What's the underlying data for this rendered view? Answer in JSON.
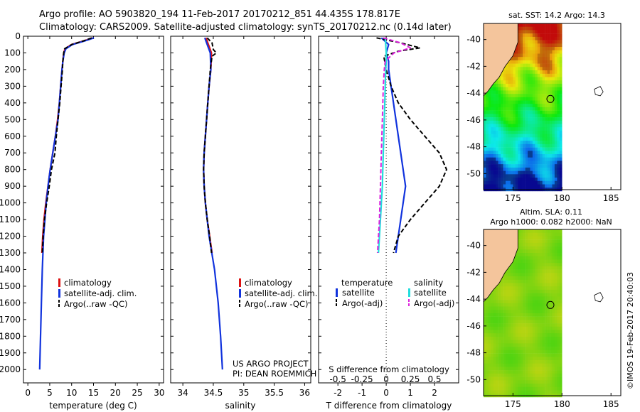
{
  "header": {
    "line1": "Argo profile: AO 5903820_194 11-Feb-2017 20170212_851 44.435S 178.817E",
    "line2": "Climatology: CARS2009. Satellite-adjusted climatology: synTS_20170212.nc (0.14d later)"
  },
  "colors": {
    "climatology": "#dd1111",
    "satellite_clim": "#1133dd",
    "argo": "#000000",
    "salinity_satellite": "#22dddd",
    "salinity_argo": "#dd22dd",
    "land": "#f4c59c"
  },
  "chart_data": [
    {
      "type": "line",
      "panel": "temperature",
      "xlabel": "temperature (deg C)",
      "xlim": [
        -1,
        31
      ],
      "xticks": [
        0,
        5,
        10,
        15,
        20,
        25,
        30
      ],
      "ylim": [
        0,
        2080
      ],
      "yticks": [
        0,
        100,
        200,
        300,
        400,
        500,
        600,
        700,
        800,
        900,
        1000,
        1100,
        1200,
        1300,
        1400,
        1500,
        1600,
        1700,
        1800,
        1900,
        2000
      ],
      "y_inverted": true,
      "legend": [
        "climatology",
        "satellite-adj. clim.",
        "Argo(..raw -QC)"
      ],
      "series": [
        {
          "name": "climatology",
          "depth": [
            10,
            30,
            50,
            75,
            100,
            150,
            200,
            300,
            400,
            500,
            600,
            700,
            800,
            900,
            1000,
            1100,
            1200,
            1300
          ],
          "values": [
            15.0,
            12.5,
            10.0,
            8.5,
            8.2,
            8.0,
            7.8,
            7.5,
            7.2,
            6.8,
            6.3,
            5.7,
            5.1,
            4.6,
            4.1,
            3.7,
            3.4,
            3.2
          ]
        },
        {
          "name": "satellite-adj. clim.",
          "depth": [
            10,
            30,
            50,
            75,
            100,
            150,
            200,
            300,
            400,
            500,
            600,
            700,
            800,
            900,
            1000,
            1200,
            1400,
            1600,
            1800,
            2000
          ],
          "values": [
            15.1,
            12.8,
            10.2,
            8.7,
            8.3,
            8.0,
            7.8,
            7.5,
            7.2,
            6.9,
            6.3,
            5.7,
            5.1,
            4.6,
            4.2,
            3.6,
            3.3,
            3.1,
            2.9,
            2.7
          ]
        },
        {
          "name": "Argo(..raw -QC)",
          "depth": [
            10,
            30,
            50,
            75,
            100,
            150,
            200,
            300,
            400,
            500,
            600,
            700,
            800,
            900,
            1000,
            1100,
            1200,
            1300
          ],
          "values": [
            14.6,
            12.5,
            10.0,
            8.4,
            8.2,
            8.0,
            7.9,
            7.6,
            7.3,
            6.9,
            6.5,
            6.2,
            5.4,
            4.9,
            4.3,
            3.8,
            3.5,
            3.3
          ]
        }
      ]
    },
    {
      "type": "line",
      "panel": "salinity",
      "xlabel": "salinity",
      "xlim": [
        33.8,
        36.1
      ],
      "xticks": [
        34,
        34.5,
        35,
        35.5,
        36
      ],
      "ylim": [
        0,
        2080
      ],
      "y_inverted": true,
      "legend": [
        "climatology",
        "satellite-adj. clim.",
        "Argo(..raw -QC)"
      ],
      "series": [
        {
          "name": "climatology",
          "depth": [
            10,
            50,
            100,
            200,
            300,
            400,
            500,
            600,
            700,
            800,
            900,
            1000,
            1100,
            1200,
            1300
          ],
          "values": [
            34.38,
            34.42,
            34.47,
            34.46,
            34.43,
            34.41,
            34.39,
            34.37,
            34.35,
            34.34,
            34.35,
            34.37,
            34.4,
            34.44,
            34.48
          ]
        },
        {
          "name": "satellite-adj. clim.",
          "depth": [
            10,
            50,
            100,
            200,
            300,
            400,
            500,
            600,
            700,
            800,
            900,
            1000,
            1200,
            1400,
            1600,
            1800,
            2000
          ],
          "values": [
            34.36,
            34.4,
            34.45,
            34.46,
            34.43,
            34.41,
            34.39,
            34.37,
            34.35,
            34.34,
            34.35,
            34.37,
            34.43,
            34.52,
            34.58,
            34.62,
            34.65
          ]
        },
        {
          "name": "Argo(..raw -QC)",
          "depth": [
            10,
            40,
            80,
            100,
            120,
            200,
            300,
            400,
            500,
            600,
            700,
            800,
            900,
            1000,
            1100,
            1200,
            1300
          ],
          "values": [
            34.4,
            34.48,
            34.5,
            34.55,
            34.48,
            34.45,
            34.43,
            34.41,
            34.39,
            34.37,
            34.35,
            34.34,
            34.35,
            34.37,
            34.4,
            34.44,
            34.47
          ]
        }
      ]
    },
    {
      "type": "line",
      "panel": "differences",
      "xlabel": "T difference from climatology",
      "xlabel2": "S difference from climatology",
      "xlim": [
        -2.8,
        3.0
      ],
      "xticks": [
        -2,
        -1,
        0,
        1,
        2
      ],
      "xticks2_values": [
        -0.5,
        -0.25,
        0,
        0.25,
        0.5
      ],
      "xticks2_labels": [
        "-0.5",
        "-0.25",
        "0",
        "0.25",
        "0.5"
      ],
      "ylim": [
        0,
        2080
      ],
      "y_inverted": true,
      "legend_headers": [
        "temperature",
        "salinity"
      ],
      "legend": [
        "satellite",
        "Argo(-adj)",
        "satellite",
        "Argo(-adj)"
      ],
      "series": [
        {
          "name": "temperature satellite",
          "depth": [
            10,
            50,
            100,
            150,
            200,
            300,
            400,
            500,
            600,
            700,
            800,
            900,
            1000,
            1100,
            1200,
            1300
          ],
          "values": [
            -0.2,
            0.1,
            0.0,
            0.1,
            0.1,
            0.2,
            0.3,
            0.4,
            0.5,
            0.6,
            0.7,
            0.8,
            0.7,
            0.6,
            0.5,
            0.4
          ]
        },
        {
          "name": "temperature Argo(-adj)",
          "depth": [
            10,
            40,
            70,
            90,
            120,
            200,
            300,
            400,
            500,
            600,
            700,
            800,
            900,
            1000,
            1100,
            1200,
            1300
          ],
          "values": [
            -0.4,
            0.6,
            1.4,
            0.5,
            -0.1,
            0.0,
            0.2,
            0.5,
            1.0,
            1.6,
            2.2,
            2.5,
            2.2,
            1.6,
            1.0,
            0.5,
            0.3
          ]
        },
        {
          "name": "salinity satellite",
          "depth": [
            10,
            50,
            100,
            150,
            200,
            300,
            400,
            500,
            600,
            700,
            800,
            900,
            1000,
            1100,
            1200,
            1300
          ],
          "values": [
            -0.01,
            -0.005,
            0.0,
            0.0,
            -0.005,
            -0.01,
            -0.015,
            -0.02,
            -0.025,
            -0.03,
            -0.035,
            -0.04,
            -0.05,
            -0.06,
            -0.07,
            -0.08
          ]
        },
        {
          "name": "salinity Argo(-adj)",
          "depth": [
            10,
            40,
            70,
            100,
            150,
            200,
            300,
            500,
            700,
            900,
            1100,
            1300
          ],
          "values": [
            -0.03,
            0.15,
            0.25,
            0.08,
            -0.01,
            -0.02,
            -0.03,
            -0.04,
            -0.05,
            -0.06,
            -0.07,
            -0.09
          ]
        }
      ]
    }
  ],
  "texts": {
    "credit1": "US ARGO PROJECT",
    "credit2": "PI: DEAN ROEMMICH",
    "timestamp": "©IMOS 19-Feb-2017 20:40:03"
  },
  "map_sst": {
    "title": "sat. SST: 14.2  Argo: 14.3",
    "lat_ticks": [
      "-40",
      "-42",
      "-44",
      "-46",
      "-48",
      "-50"
    ],
    "lon_ticks": [
      "175",
      "180",
      "185"
    ],
    "float_lon": 178.817,
    "float_lat": -44.435
  },
  "map_sla": {
    "title1": "Altim. SLA: 0.11",
    "title2": "Argo h1000: 0.082  h2000: NaN",
    "lat_ticks": [
      "-40",
      "-42",
      "-44",
      "-46",
      "-48",
      "-50"
    ],
    "lon_ticks": [
      "175",
      "180",
      "185"
    ],
    "float_lon": 178.817,
    "float_lat": -44.435
  }
}
